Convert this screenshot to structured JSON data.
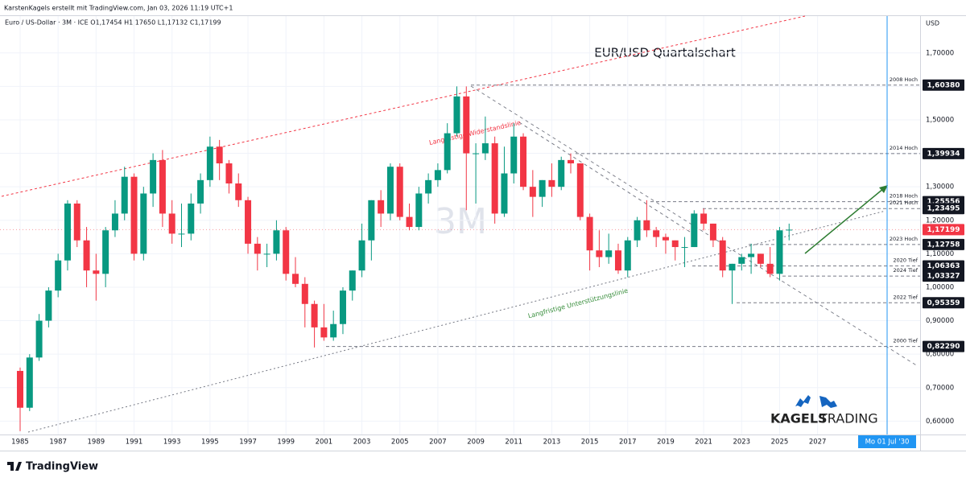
{
  "header": "KarstenKagels erstellt mit TradingView.com, Jan 03, 2026 11:19 UTC+1",
  "legend": "Euro / US-Dollar · 3M · ICE  O1,17454 H1,17650 L1,17132 C1,17199",
  "footer": "TradingView",
  "logo": {
    "brand": "KAGELS",
    "brand2": "TRADING"
  },
  "crosshair_label": "Mo 01 Jul '30",
  "chart_data": {
    "type": "candlestick",
    "title": "EUR/USD Quartalschart",
    "watermark": "3M",
    "currency": "USD",
    "up_color": "#089981",
    "down_color": "#f23645",
    "x": [
      1985,
      1985.5,
      1986,
      1986.5,
      1987,
      1987.5,
      1988,
      1988.5,
      1989,
      1989.5,
      1990,
      1990.5,
      1991,
      1991.5,
      1992,
      1992.5,
      1993,
      1993.5,
      1994,
      1994.5,
      1995,
      1995.5,
      1996,
      1996.5,
      1997,
      1997.5,
      1998,
      1998.5,
      1999,
      1999.5,
      2000,
      2000.5,
      2001,
      2001.5,
      2002,
      2002.5,
      2003,
      2003.5,
      2004,
      2004.5,
      2005,
      2005.5,
      2006,
      2006.5,
      2007,
      2007.5,
      2008,
      2008.5,
      2009,
      2009.5,
      2010,
      2010.5,
      2011,
      2011.5,
      2012,
      2012.5,
      2013,
      2013.5,
      2014,
      2014.5,
      2015,
      2015.5,
      2016,
      2016.5,
      2017,
      2017.5,
      2018,
      2018.5,
      2019,
      2019.5,
      2020,
      2020.5,
      2021,
      2021.5,
      2022,
      2022.5,
      2023,
      2023.5,
      2024,
      2024.5,
      2025,
      2025.5
    ],
    "open": [
      0.75,
      0.64,
      0.79,
      0.9,
      0.99,
      1.08,
      1.25,
      1.14,
      1.05,
      1.04,
      1.17,
      1.22,
      1.33,
      1.1,
      1.28,
      1.38,
      1.22,
      1.16,
      1.16,
      1.25,
      1.32,
      1.42,
      1.37,
      1.31,
      1.26,
      1.13,
      1.1,
      1.1,
      1.17,
      1.04,
      1.01,
      0.95,
      0.88,
      0.85,
      0.89,
      0.99,
      1.05,
      1.14,
      1.26,
      1.22,
      1.36,
      1.21,
      1.18,
      1.28,
      1.32,
      1.35,
      1.46,
      1.57,
      1.4,
      1.4,
      1.43,
      1.22,
      1.34,
      1.45,
      1.3,
      1.27,
      1.32,
      1.3,
      1.38,
      1.37,
      1.21,
      1.11,
      1.09,
      1.11,
      1.05,
      1.14,
      1.2,
      1.17,
      1.15,
      1.14,
      1.12,
      1.12,
      1.22,
      1.19,
      1.14,
      1.05,
      1.07,
      1.09,
      1.1,
      1.07,
      1.04,
      1.17
    ],
    "high": [
      0.76,
      0.8,
      0.92,
      1.0,
      1.1,
      1.26,
      1.26,
      1.18,
      1.1,
      1.18,
      1.26,
      1.36,
      1.34,
      1.3,
      1.4,
      1.41,
      1.26,
      1.25,
      1.28,
      1.34,
      1.45,
      1.44,
      1.38,
      1.34,
      1.27,
      1.15,
      1.13,
      1.2,
      1.18,
      1.09,
      1.03,
      0.96,
      0.95,
      0.93,
      1.0,
      1.05,
      1.19,
      1.26,
      1.29,
      1.37,
      1.37,
      1.25,
      1.3,
      1.34,
      1.37,
      1.49,
      1.6,
      1.6,
      1.43,
      1.51,
      1.45,
      1.42,
      1.49,
      1.46,
      1.35,
      1.32,
      1.37,
      1.39,
      1.4,
      1.37,
      1.22,
      1.17,
      1.16,
      1.13,
      1.15,
      1.21,
      1.26,
      1.18,
      1.16,
      1.14,
      1.15,
      1.23,
      1.235,
      1.19,
      1.15,
      1.07,
      1.1,
      1.13,
      1.1,
      1.12,
      1.18,
      1.19
    ],
    "low": [
      0.57,
      0.63,
      0.78,
      0.88,
      0.97,
      1.05,
      1.12,
      1.0,
      0.96,
      1.0,
      1.15,
      1.2,
      1.08,
      1.08,
      1.24,
      1.18,
      1.13,
      1.12,
      1.14,
      1.22,
      1.3,
      1.32,
      1.28,
      1.24,
      1.1,
      1.05,
      1.06,
      1.08,
      1.02,
      1.0,
      0.88,
      0.82,
      0.84,
      0.84,
      0.86,
      0.96,
      1.03,
      1.08,
      1.18,
      1.2,
      1.2,
      1.17,
      1.17,
      1.25,
      1.3,
      1.34,
      1.45,
      1.23,
      1.25,
      1.38,
      1.19,
      1.21,
      1.31,
      1.29,
      1.21,
      1.24,
      1.27,
      1.29,
      1.34,
      1.2,
      1.05,
      1.06,
      1.07,
      1.04,
      1.03,
      1.12,
      1.15,
      1.12,
      1.1,
      1.08,
      1.06,
      1.12,
      1.17,
      1.12,
      1.03,
      0.95,
      1.05,
      1.04,
      1.06,
      1.03,
      1.02,
      1.14
    ],
    "close": [
      0.64,
      0.79,
      0.9,
      0.99,
      1.08,
      1.25,
      1.14,
      1.05,
      1.04,
      1.17,
      1.22,
      1.33,
      1.1,
      1.28,
      1.38,
      1.22,
      1.16,
      1.16,
      1.25,
      1.32,
      1.42,
      1.37,
      1.31,
      1.26,
      1.13,
      1.1,
      1.1,
      1.17,
      1.04,
      1.01,
      0.95,
      0.88,
      0.85,
      0.89,
      0.99,
      1.05,
      1.14,
      1.26,
      1.22,
      1.36,
      1.21,
      1.18,
      1.28,
      1.32,
      1.35,
      1.46,
      1.57,
      1.4,
      1.4,
      1.43,
      1.22,
      1.34,
      1.45,
      1.3,
      1.27,
      1.32,
      1.3,
      1.38,
      1.37,
      1.21,
      1.11,
      1.09,
      1.11,
      1.05,
      1.14,
      1.2,
      1.17,
      1.15,
      1.14,
      1.12,
      1.12,
      1.22,
      1.19,
      1.14,
      1.05,
      1.07,
      1.09,
      1.1,
      1.07,
      1.04,
      1.17,
      1.17199
    ],
    "xlim": [
      1983.94,
      2032.4
    ],
    "ylim": [
      0.56,
      1.81
    ],
    "xticks": [
      1985,
      1987,
      1989,
      1991,
      1993,
      1995,
      1997,
      1999,
      2001,
      2003,
      2005,
      2007,
      2009,
      2011,
      2013,
      2015,
      2017,
      2019,
      2021,
      2023,
      2025,
      2027
    ],
    "yticks": [
      {
        "value": 0.6,
        "label": "0,60000"
      },
      {
        "value": 0.7,
        "label": "0,70000"
      },
      {
        "value": 0.8,
        "label": "0,80000"
      },
      {
        "value": 0.9,
        "label": "0,90000"
      },
      {
        "value": 1.0,
        "label": "1,00000"
      },
      {
        "value": 1.1,
        "label": "1,10000"
      },
      {
        "value": 1.2,
        "label": "1,20000"
      },
      {
        "value": 1.3,
        "label": "1,30000"
      },
      {
        "value": 1.4,
        "label": "1,40000"
      },
      {
        "value": 1.5,
        "label": "1,50000"
      },
      {
        "value": 1.6,
        "label": "1,60000"
      },
      {
        "value": 1.7,
        "label": "1,70000"
      }
    ],
    "levels": [
      {
        "name": "2008 Hoch",
        "value": 1.6038,
        "label": "1,60380"
      },
      {
        "name": "2014 Hoch",
        "value": 1.39934,
        "label": "1,39934"
      },
      {
        "name": "2018 Hoch",
        "value": 1.25556,
        "label": "1,25556"
      },
      {
        "name": "2021 Hoch",
        "value": 1.23495,
        "label": "1,23495"
      },
      {
        "name": "2023 Hoch",
        "value": 1.12758,
        "label": "1,12758"
      },
      {
        "name": "2020 Tief",
        "value": 1.06363,
        "label": "1,06363"
      },
      {
        "name": "2024 Tief",
        "value": 1.03327,
        "label": "1,03327"
      },
      {
        "name": "2022 Tief",
        "value": 0.95359,
        "label": "0,95359"
      },
      {
        "name": "2000 Tief",
        "value": 0.8229,
        "label": "0,82290"
      }
    ],
    "last_price": {
      "value": 1.17199,
      "label": "1,17199"
    },
    "annotations": [
      "Langfristige Widerstandslinie",
      "Langfristige Unterstützungslinie"
    ]
  }
}
